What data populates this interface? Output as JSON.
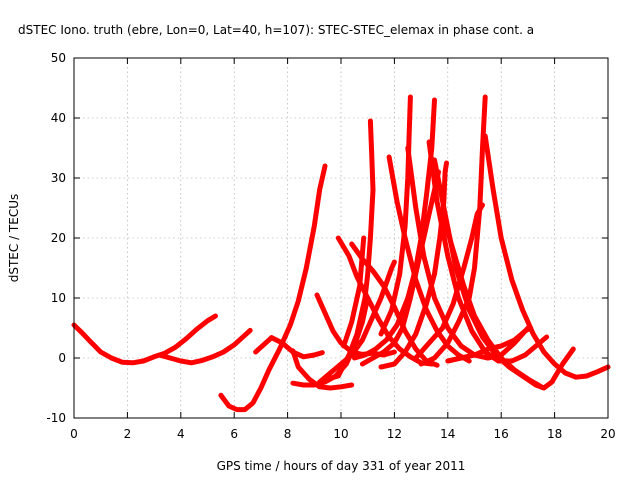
{
  "chart_data": {
    "type": "scatter",
    "title": "dSTEC Iono. truth (ebre, Lon=0, Lat=40, h=107): STEC-STEC_elemax in phase cont. a",
    "xlabel": "GPS time / hours of day 331 of year 2011",
    "ylabel": "dSTEC  / TECUs",
    "xlim": [
      0,
      20
    ],
    "ylim": [
      -10,
      50
    ],
    "x_ticks": [
      0,
      2,
      4,
      6,
      8,
      10,
      12,
      14,
      16,
      18,
      20
    ],
    "y_ticks": [
      -10,
      0,
      10,
      20,
      30,
      40,
      50
    ],
    "grid": true,
    "marker": "plus",
    "color": "#ff0000",
    "series": [
      {
        "points": [
          [
            0.0,
            5.5
          ],
          [
            0.3,
            4.2
          ],
          [
            0.6,
            2.8
          ],
          [
            1.0,
            1.0
          ],
          [
            1.4,
            0.0
          ],
          [
            1.8,
            -0.7
          ],
          [
            2.2,
            -0.8
          ],
          [
            2.6,
            -0.5
          ],
          [
            3.0,
            0.2
          ],
          [
            3.4,
            0.8
          ],
          [
            3.8,
            1.8
          ],
          [
            4.2,
            3.2
          ],
          [
            4.6,
            4.8
          ],
          [
            5.0,
            6.2
          ],
          [
            5.3,
            7.0
          ]
        ]
      },
      {
        "points": [
          [
            3.2,
            0.5
          ],
          [
            3.6,
            0.0
          ],
          [
            4.0,
            -0.5
          ],
          [
            4.4,
            -0.8
          ],
          [
            4.8,
            -0.4
          ],
          [
            5.2,
            0.2
          ],
          [
            5.6,
            1.0
          ],
          [
            6.0,
            2.2
          ],
          [
            6.4,
            3.8
          ],
          [
            6.6,
            4.6
          ]
        ]
      },
      {
        "points": [
          [
            5.5,
            -6.2
          ],
          [
            5.8,
            -8.0
          ],
          [
            6.1,
            -8.6
          ],
          [
            6.4,
            -8.6
          ],
          [
            6.7,
            -7.5
          ],
          [
            7.0,
            -5.0
          ],
          [
            7.3,
            -2.0
          ],
          [
            7.7,
            1.5
          ],
          [
            8.1,
            5.5
          ],
          [
            8.4,
            9.5
          ],
          [
            8.7,
            15.0
          ],
          [
            9.0,
            22.0
          ],
          [
            9.2,
            28.0
          ],
          [
            9.4,
            32.0
          ]
        ]
      },
      {
        "points": [
          [
            6.8,
            1.0
          ],
          [
            7.1,
            2.2
          ],
          [
            7.4,
            3.4
          ],
          [
            7.8,
            2.5
          ],
          [
            8.2,
            1.0
          ],
          [
            8.6,
            0.2
          ],
          [
            9.0,
            0.5
          ],
          [
            9.3,
            0.9
          ]
        ]
      },
      {
        "points": [
          [
            8.2,
            1.2
          ],
          [
            8.4,
            -1.5
          ],
          [
            8.8,
            -3.5
          ],
          [
            9.2,
            -4.8
          ],
          [
            9.6,
            -5.0
          ],
          [
            10.0,
            -4.8
          ],
          [
            10.4,
            -4.5
          ]
        ]
      },
      {
        "points": [
          [
            8.2,
            -4.2
          ],
          [
            8.6,
            -4.5
          ],
          [
            9.0,
            -4.5
          ],
          [
            9.4,
            -4.0
          ],
          [
            9.8,
            -3.0
          ],
          [
            10.2,
            -1.0
          ],
          [
            10.5,
            2.0
          ],
          [
            10.8,
            6.0
          ],
          [
            11.0,
            10.0
          ]
        ]
      },
      {
        "points": [
          [
            9.1,
            10.5
          ],
          [
            9.4,
            7.5
          ],
          [
            9.7,
            4.5
          ],
          [
            10.0,
            2.5
          ],
          [
            10.4,
            1.0
          ],
          [
            10.8,
            0.6
          ],
          [
            11.2,
            0.8
          ],
          [
            11.6,
            0.5
          ],
          [
            12.0,
            1.0
          ]
        ]
      },
      {
        "points": [
          [
            9.2,
            -4.0
          ],
          [
            9.6,
            -2.5
          ],
          [
            10.0,
            -1.0
          ],
          [
            10.4,
            0.5
          ],
          [
            10.8,
            3.0
          ],
          [
            11.1,
            6.0
          ],
          [
            11.5,
            10.0
          ],
          [
            11.9,
            15.0
          ],
          [
            12.0,
            16.0
          ]
        ]
      },
      {
        "points": [
          [
            9.5,
            -3.5
          ],
          [
            9.9,
            -3.0
          ],
          [
            10.3,
            0.5
          ],
          [
            10.6,
            4.0
          ],
          [
            10.9,
            10.0
          ],
          [
            11.0,
            14.0
          ],
          [
            11.1,
            20.0
          ],
          [
            11.2,
            28.0
          ],
          [
            11.15,
            34.0
          ],
          [
            11.1,
            39.5
          ]
        ]
      },
      {
        "points": [
          [
            10.1,
            2.0
          ],
          [
            10.4,
            6.0
          ],
          [
            10.7,
            12.0
          ],
          [
            10.85,
            20.0
          ]
        ]
      },
      {
        "points": [
          [
            9.9,
            20.0
          ],
          [
            10.3,
            17.0
          ],
          [
            10.6,
            13.5
          ],
          [
            11.0,
            10.0
          ],
          [
            11.4,
            6.5
          ],
          [
            11.8,
            3.5
          ],
          [
            12.2,
            1.5
          ],
          [
            12.6,
            0.2
          ],
          [
            13.0,
            -0.8
          ],
          [
            13.4,
            -1.0
          ]
        ]
      },
      {
        "points": [
          [
            10.4,
            19.0
          ],
          [
            10.8,
            16.5
          ],
          [
            11.2,
            14.5
          ],
          [
            11.6,
            12.0
          ],
          [
            12.0,
            8.5
          ],
          [
            12.4,
            4.5
          ],
          [
            12.8,
            1.5
          ],
          [
            13.2,
            -0.5
          ],
          [
            13.6,
            -1.2
          ]
        ]
      },
      {
        "points": [
          [
            10.5,
            0.0
          ],
          [
            10.9,
            0.5
          ],
          [
            11.3,
            1.5
          ],
          [
            11.7,
            3.0
          ],
          [
            12.1,
            5.5
          ],
          [
            12.5,
            10.0
          ],
          [
            12.8,
            15.0
          ],
          [
            13.0,
            20.0
          ],
          [
            13.2,
            27.0
          ],
          [
            13.4,
            35.0
          ],
          [
            13.5,
            43.0
          ]
        ]
      },
      {
        "points": [
          [
            10.8,
            -1.0
          ],
          [
            11.2,
            0.0
          ],
          [
            11.6,
            1.0
          ],
          [
            12.0,
            2.5
          ],
          [
            12.3,
            5.0
          ],
          [
            12.6,
            10.0
          ],
          [
            12.9,
            16.0
          ],
          [
            13.2,
            22.0
          ],
          [
            13.5,
            28.0
          ],
          [
            13.65,
            31.0
          ]
        ]
      },
      {
        "points": [
          [
            11.5,
            -1.5
          ],
          [
            12.0,
            -1.0
          ],
          [
            12.4,
            1.0
          ],
          [
            12.8,
            4.0
          ],
          [
            13.2,
            9.0
          ],
          [
            13.5,
            14.0
          ],
          [
            13.7,
            20.0
          ],
          [
            13.85,
            26.0
          ],
          [
            13.9,
            31.0
          ],
          [
            13.95,
            32.5
          ]
        ]
      },
      {
        "points": [
          [
            11.8,
            33.5
          ],
          [
            12.1,
            26.0
          ],
          [
            12.4,
            20.0
          ],
          [
            12.8,
            13.0
          ],
          [
            13.2,
            8.0
          ],
          [
            13.6,
            4.5
          ],
          [
            14.0,
            2.0
          ],
          [
            14.4,
            0.5
          ],
          [
            14.8,
            -0.5
          ]
        ]
      },
      {
        "points": [
          [
            11.5,
            4.0
          ],
          [
            11.9,
            8.0
          ],
          [
            12.2,
            14.0
          ],
          [
            12.4,
            22.0
          ],
          [
            12.5,
            30.0
          ],
          [
            12.55,
            37.0
          ],
          [
            12.6,
            43.5
          ]
        ]
      },
      {
        "points": [
          [
            12.5,
            35.0
          ],
          [
            12.8,
            25.0
          ],
          [
            13.1,
            17.0
          ],
          [
            13.5,
            10.0
          ],
          [
            14.0,
            5.0
          ],
          [
            14.5,
            2.0
          ],
          [
            15.0,
            0.5
          ],
          [
            15.5,
            0.0
          ],
          [
            16.0,
            0.5
          ],
          [
            16.5,
            2.5
          ],
          [
            17.0,
            5.0
          ]
        ]
      },
      {
        "points": [
          [
            13.3,
            36.0
          ],
          [
            13.6,
            26.0
          ],
          [
            14.0,
            17.0
          ],
          [
            14.4,
            10.0
          ],
          [
            14.9,
            4.5
          ],
          [
            15.4,
            1.0
          ],
          [
            15.9,
            -0.5
          ],
          [
            16.4,
            -0.5
          ],
          [
            16.9,
            0.5
          ],
          [
            17.3,
            2.0
          ],
          [
            17.7,
            3.5
          ]
        ]
      },
      {
        "points": [
          [
            13.5,
            33.0
          ],
          [
            13.9,
            24.0
          ],
          [
            14.3,
            15.0
          ],
          [
            14.8,
            8.0
          ],
          [
            15.3,
            3.5
          ],
          [
            15.8,
            0.5
          ],
          [
            16.3,
            -1.5
          ],
          [
            16.8,
            -3.0
          ],
          [
            17.3,
            -4.5
          ],
          [
            17.6,
            -5.0
          ],
          [
            17.9,
            -4.0
          ],
          [
            18.3,
            -1.0
          ],
          [
            18.7,
            1.5
          ]
        ]
      },
      {
        "points": [
          [
            13.8,
            24.0
          ],
          [
            14.2,
            18.0
          ],
          [
            14.6,
            12.0
          ],
          [
            15.0,
            7.0
          ],
          [
            15.5,
            3.0
          ],
          [
            16.0,
            0.0
          ],
          [
            16.5,
            -2.0
          ],
          [
            17.0,
            -3.5
          ],
          [
            17.5,
            -4.8
          ]
        ]
      },
      {
        "points": [
          [
            12.8,
            0.0
          ],
          [
            13.3,
            2.5
          ],
          [
            13.8,
            5.0
          ],
          [
            14.2,
            9.0
          ],
          [
            14.6,
            15.0
          ],
          [
            14.9,
            20.0
          ],
          [
            15.1,
            24.0
          ],
          [
            15.3,
            25.5
          ]
        ]
      },
      {
        "points": [
          [
            13.0,
            -1.0
          ],
          [
            13.5,
            0.0
          ],
          [
            14.0,
            2.5
          ],
          [
            14.4,
            6.0
          ],
          [
            14.8,
            10.0
          ],
          [
            15.0,
            15.0
          ],
          [
            15.2,
            25.0
          ],
          [
            15.3,
            35.0
          ],
          [
            15.4,
            43.5
          ]
        ]
      },
      {
        "points": [
          [
            15.4,
            37.0
          ],
          [
            15.7,
            28.0
          ],
          [
            16.0,
            20.0
          ],
          [
            16.4,
            13.0
          ],
          [
            16.8,
            8.0
          ],
          [
            17.2,
            4.0
          ],
          [
            17.6,
            1.0
          ],
          [
            18.0,
            -1.0
          ],
          [
            18.4,
            -2.5
          ],
          [
            18.8,
            -3.2
          ],
          [
            19.2,
            -3.0
          ],
          [
            19.6,
            -2.3
          ],
          [
            20.0,
            -1.5
          ]
        ]
      },
      {
        "points": [
          [
            14.0,
            -0.5
          ],
          [
            14.5,
            0.0
          ],
          [
            15.0,
            0.5
          ],
          [
            15.5,
            1.5
          ],
          [
            16.0,
            2.0
          ],
          [
            16.5,
            3.0
          ],
          [
            16.9,
            4.5
          ],
          [
            17.1,
            5.0
          ]
        ]
      }
    ]
  }
}
